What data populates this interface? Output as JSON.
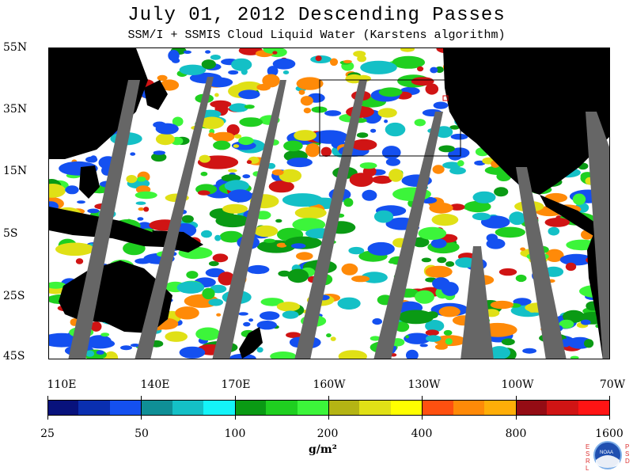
{
  "title": "July 01, 2012  Descending Passes",
  "subtitle": "SSM/I + SSMIS Cloud Liquid Water (Karstens algorithm)",
  "lat_labels": [
    "55N",
    "35N",
    "15N",
    "5S",
    "25S",
    "45S"
  ],
  "lon_labels": [
    "110E",
    "140E",
    "170E",
    "160W",
    "130W",
    "100W",
    "70W"
  ],
  "colorbar": {
    "colors": [
      "#08127c",
      "#0a2fb0",
      "#1450f0",
      "#0f8f96",
      "#14c0c6",
      "#14f4f8",
      "#0a9a14",
      "#1fcf20",
      "#3cf53a",
      "#b4b414",
      "#e0e016",
      "#ffff00",
      "#ff5010",
      "#ff8a08",
      "#ffae08",
      "#940c14",
      "#d01414",
      "#ff1414"
    ],
    "labels": [
      "25",
      "50",
      "100",
      "200",
      "400",
      "800",
      "1600"
    ],
    "units": "g/m²"
  },
  "logo": {
    "left_letters": [
      "E",
      "S",
      "R",
      "L"
    ],
    "right_letters": [
      "P",
      "S",
      "D"
    ],
    "center": "NOAA"
  }
}
